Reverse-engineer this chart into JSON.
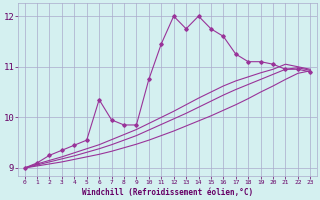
{
  "x_values": [
    0,
    1,
    2,
    3,
    4,
    5,
    6,
    7,
    8,
    9,
    10,
    11,
    12,
    13,
    14,
    15,
    16,
    17,
    18,
    19,
    20,
    21,
    22,
    23
  ],
  "line1_y": [
    9.0,
    9.1,
    9.25,
    9.35,
    9.45,
    9.55,
    10.35,
    9.95,
    9.85,
    9.85,
    10.75,
    11.45,
    12.0,
    11.75,
    12.0,
    11.75,
    11.6,
    11.25,
    11.1,
    11.1,
    11.05,
    10.95,
    10.95,
    10.9
  ],
  "line2_y": [
    9.0,
    9.08,
    9.15,
    9.22,
    9.3,
    9.38,
    9.46,
    9.56,
    9.66,
    9.76,
    9.88,
    10.0,
    10.12,
    10.25,
    10.38,
    10.5,
    10.62,
    10.72,
    10.8,
    10.88,
    10.95,
    11.05,
    11.0,
    10.95
  ],
  "line3_y": [
    9.0,
    9.06,
    9.12,
    9.18,
    9.24,
    9.31,
    9.38,
    9.46,
    9.55,
    9.64,
    9.75,
    9.86,
    9.97,
    10.08,
    10.2,
    10.32,
    10.44,
    10.55,
    10.65,
    10.75,
    10.85,
    10.95,
    10.98,
    10.93
  ],
  "line4_y": [
    9.0,
    9.04,
    9.08,
    9.12,
    9.17,
    9.22,
    9.27,
    9.33,
    9.4,
    9.47,
    9.55,
    9.64,
    9.73,
    9.83,
    9.93,
    10.03,
    10.14,
    10.25,
    10.37,
    10.5,
    10.62,
    10.75,
    10.87,
    10.92
  ],
  "line_color": "#993399",
  "bg_color": "#d4f0f0",
  "grid_color": "#aaaacc",
  "xlabel": "Windchill (Refroidissement éolien,°C)",
  "xlabel_color": "#660066",
  "tick_color": "#660066",
  "ylim": [
    8.85,
    12.25
  ],
  "xlim": [
    -0.5,
    23.5
  ],
  "yticks": [
    9,
    10,
    11,
    12
  ],
  "xticks": [
    0,
    1,
    2,
    3,
    4,
    5,
    6,
    7,
    8,
    9,
    10,
    11,
    12,
    13,
    14,
    15,
    16,
    17,
    18,
    19,
    20,
    21,
    22,
    23
  ],
  "figw": 3.2,
  "figh": 2.0,
  "dpi": 100
}
